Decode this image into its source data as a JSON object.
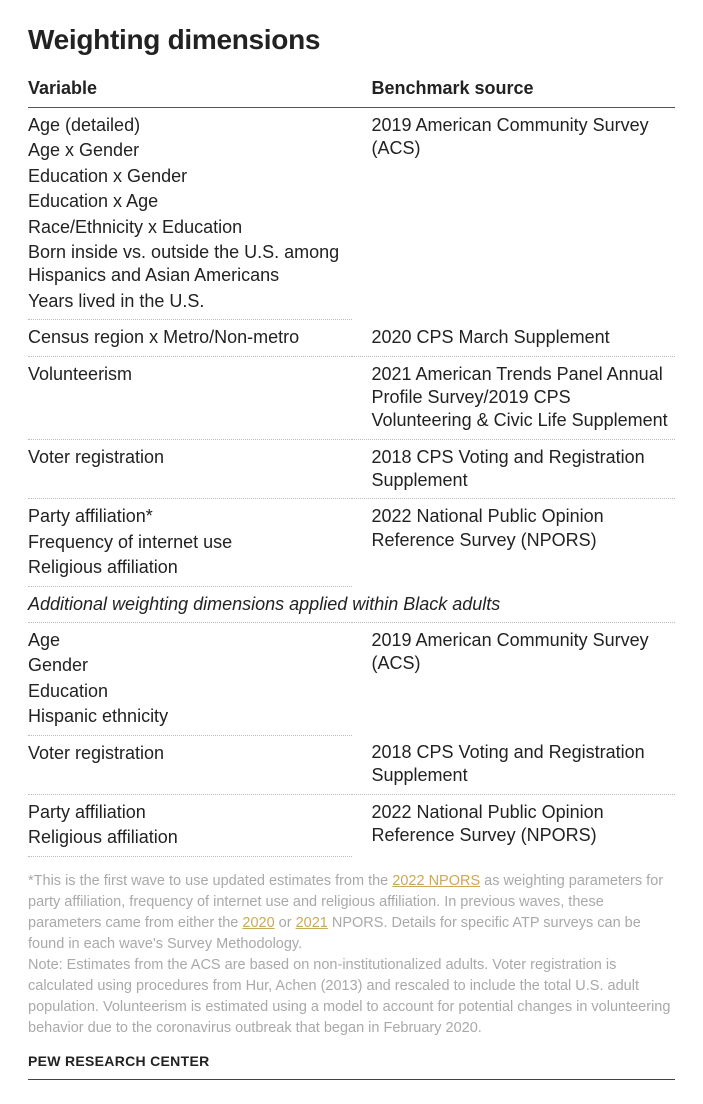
{
  "title": "Weighting dimensions",
  "columns": {
    "left": "Variable",
    "right": "Benchmark source"
  },
  "groups": [
    {
      "vars": [
        "Age (detailed)",
        "Age x Gender",
        "Education x Gender",
        "Education x Age",
        "Race/Ethnicity x Education",
        "Born inside vs. outside the U.S. among Hispanics and Asian Americans",
        "Years lived in the U.S."
      ],
      "source": "2019 American Community Survey (ACS)"
    },
    {
      "vars": [
        "Census region x Metro/Non-metro"
      ],
      "source": "2020 CPS March Supplement"
    },
    {
      "vars": [
        "Volunteerism"
      ],
      "source": "2021 American Trends Panel Annual Profile Survey/2019 CPS Volunteering & Civic Life Supplement"
    },
    {
      "vars": [
        "Voter registration"
      ],
      "source": "2018 CPS Voting and Registration Supplement"
    },
    {
      "vars": [
        "Party affiliation*",
        "Frequency of internet use",
        "Religious affiliation"
      ],
      "source": "2022 National Public Opinion Reference Survey (NPORS)"
    }
  ],
  "section_header": "Additional weighting dimensions applied within Black adults",
  "groups2": [
    {
      "vars": [
        "Age",
        "Gender",
        "Education",
        "Hispanic ethnicity"
      ],
      "source": "2019 American Community Survey (ACS)"
    },
    {
      "vars": [
        "Voter registration"
      ],
      "source": "2018 CPS Voting and Registration Supplement"
    },
    {
      "vars": [
        "Party affiliation",
        "Religious affiliation"
      ],
      "source": "2022 National Public Opinion Reference Survey (NPORS)"
    }
  ],
  "footnote1_pre": "*This is the first wave to use updated estimates from the ",
  "footnote1_link1": "2022 NPORS",
  "footnote1_mid": " as weighting parameters for party affiliation, frequency of internet use and religious affiliation. In previous waves, these parameters came from either the ",
  "footnote1_link2": "2020",
  "footnote1_or": " or ",
  "footnote1_link3": "2021",
  "footnote1_post": " NPORS. Details for specific ATP surveys can be found in each wave's Survey Methodology.",
  "footnote2": "Note: Estimates from the ACS are based on non-institutionalized adults. Voter registration is calculated using procedures from Hur, Achen (2013) and rescaled to include the total U.S. adult population. Volunteerism is estimated using a model to account for potential changes in volunteering behavior due to the coronavirus outbreak that began in February 2020.",
  "source_org": "PEW RESEARCH CENTER"
}
